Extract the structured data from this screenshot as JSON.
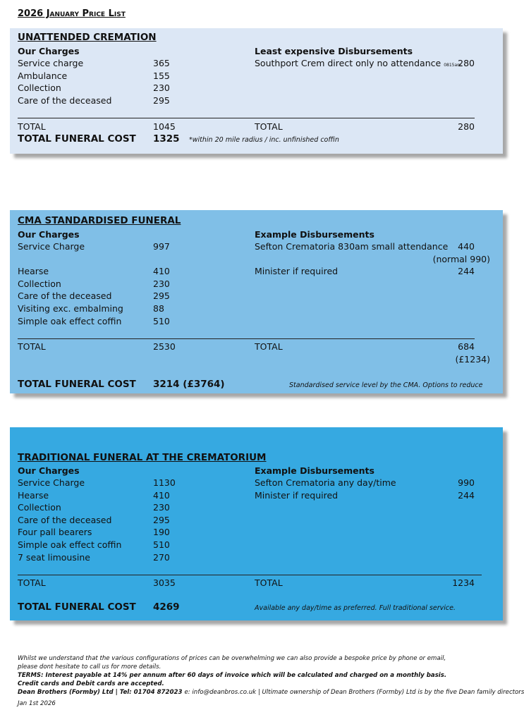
{
  "header": {
    "title": "2026 January Price List"
  },
  "sections": [
    {
      "title": "UNATTENDED CREMATION",
      "charges_heading": "Our Charges",
      "charges": [
        {
          "label": "Service charge",
          "value": 365
        },
        {
          "label": "Ambulance",
          "value": 155
        },
        {
          "label": "Collection",
          "value": 230
        },
        {
          "label": "Care of the deceased",
          "value": 295
        }
      ],
      "disbursements_heading": "Least expensive Disbursements",
      "disbursements": [
        {
          "label": "Southport Crem direct only no attendance",
          "time": "0815am",
          "value": 280
        }
      ],
      "total_label": "TOTAL",
      "charges_total": 1045,
      "disbursements_total_label": "TOTAL",
      "disbursements_total": 280,
      "grand_label": "TOTAL FUNERAL COST",
      "grand_total": 1325,
      "note": "*within 20 mile radius / inc. unfinished coffin"
    },
    {
      "title": "CMA STANDARDISED FUNERAL",
      "charges_heading": "Our Charges",
      "charges": [
        {
          "label": "Service Charge",
          "value": 997
        },
        {
          "label": "Hearse",
          "value": 410
        },
        {
          "label": "Collection",
          "value": 230
        },
        {
          "label": "Care of the deceased",
          "value": 295
        },
        {
          "label": "Visiting exc. embalming",
          "value": 88
        },
        {
          "label": "Simple oak effect coffin",
          "value": 510
        }
      ],
      "disbursements_heading": "Example Disbursements",
      "disbursements": [
        {
          "label": "Sefton Crematoria 830am small attendance",
          "value": 440,
          "sub": "(normal 990)"
        },
        {
          "label": "Minister if required",
          "value": 244
        }
      ],
      "total_label": "TOTAL",
      "charges_total": 2530,
      "disbursements_total_label": "TOTAL",
      "disbursements_total": 684,
      "disbursements_total_sub": "(£1234)",
      "grand_label": "TOTAL FUNERAL COST",
      "grand_total": "3214 (£3764)",
      "note": "Standardised service level by the CMA.  Options to reduce"
    },
    {
      "title": "TRADITIONAL FUNERAL AT THE CREMATORIUM",
      "charges_heading": "Our Charges",
      "charges": [
        {
          "label": "Service Charge",
          "value": 1130
        },
        {
          "label": "Hearse",
          "value": 410
        },
        {
          "label": "Collection",
          "value": 230
        },
        {
          "label": "Care of the deceased",
          "value": 295
        },
        {
          "label": "Four pall bearers",
          "value": 190
        },
        {
          "label": "Simple oak effect coffin",
          "value": 510
        },
        {
          "label": "7 seat limousine",
          "value": 270
        }
      ],
      "disbursements_heading": "Example Disbursements",
      "disbursements": [
        {
          "label": "Sefton Crematoria any day/time",
          "value": 990
        },
        {
          "label": "Minister if required",
          "value": 244
        }
      ],
      "total_label": "TOTAL",
      "charges_total": 3035,
      "disbursements_total_label": "TOTAL",
      "disbursements_total": 1234,
      "grand_label": "TOTAL FUNERAL COST",
      "grand_total": 4269,
      "note": "Available any day/time as preferred.  Full traditional service."
    }
  ],
  "footer": {
    "lines": [
      "Whilst we understand that the various configurations of prices can be overwhelming we can also provide a bespoke price by phone or email,",
      "please dont hesitate to call us for more details."
    ],
    "terms": [
      "TERMS: Interest payable at 14% per annum after 60 days of invoice which will be calculated and charged on a monthly basis.",
      "Credit cards and Debit cards are accepted."
    ],
    "company": "Dean Brothers (Formby) Ltd | Tel: 01704 872023",
    "contact": "e: info@deanbros.co.uk | Ultimate ownership of Dean Brothers (Formby) Ltd is by the five Dean family directors.",
    "date": "Jan 1st 2026"
  }
}
